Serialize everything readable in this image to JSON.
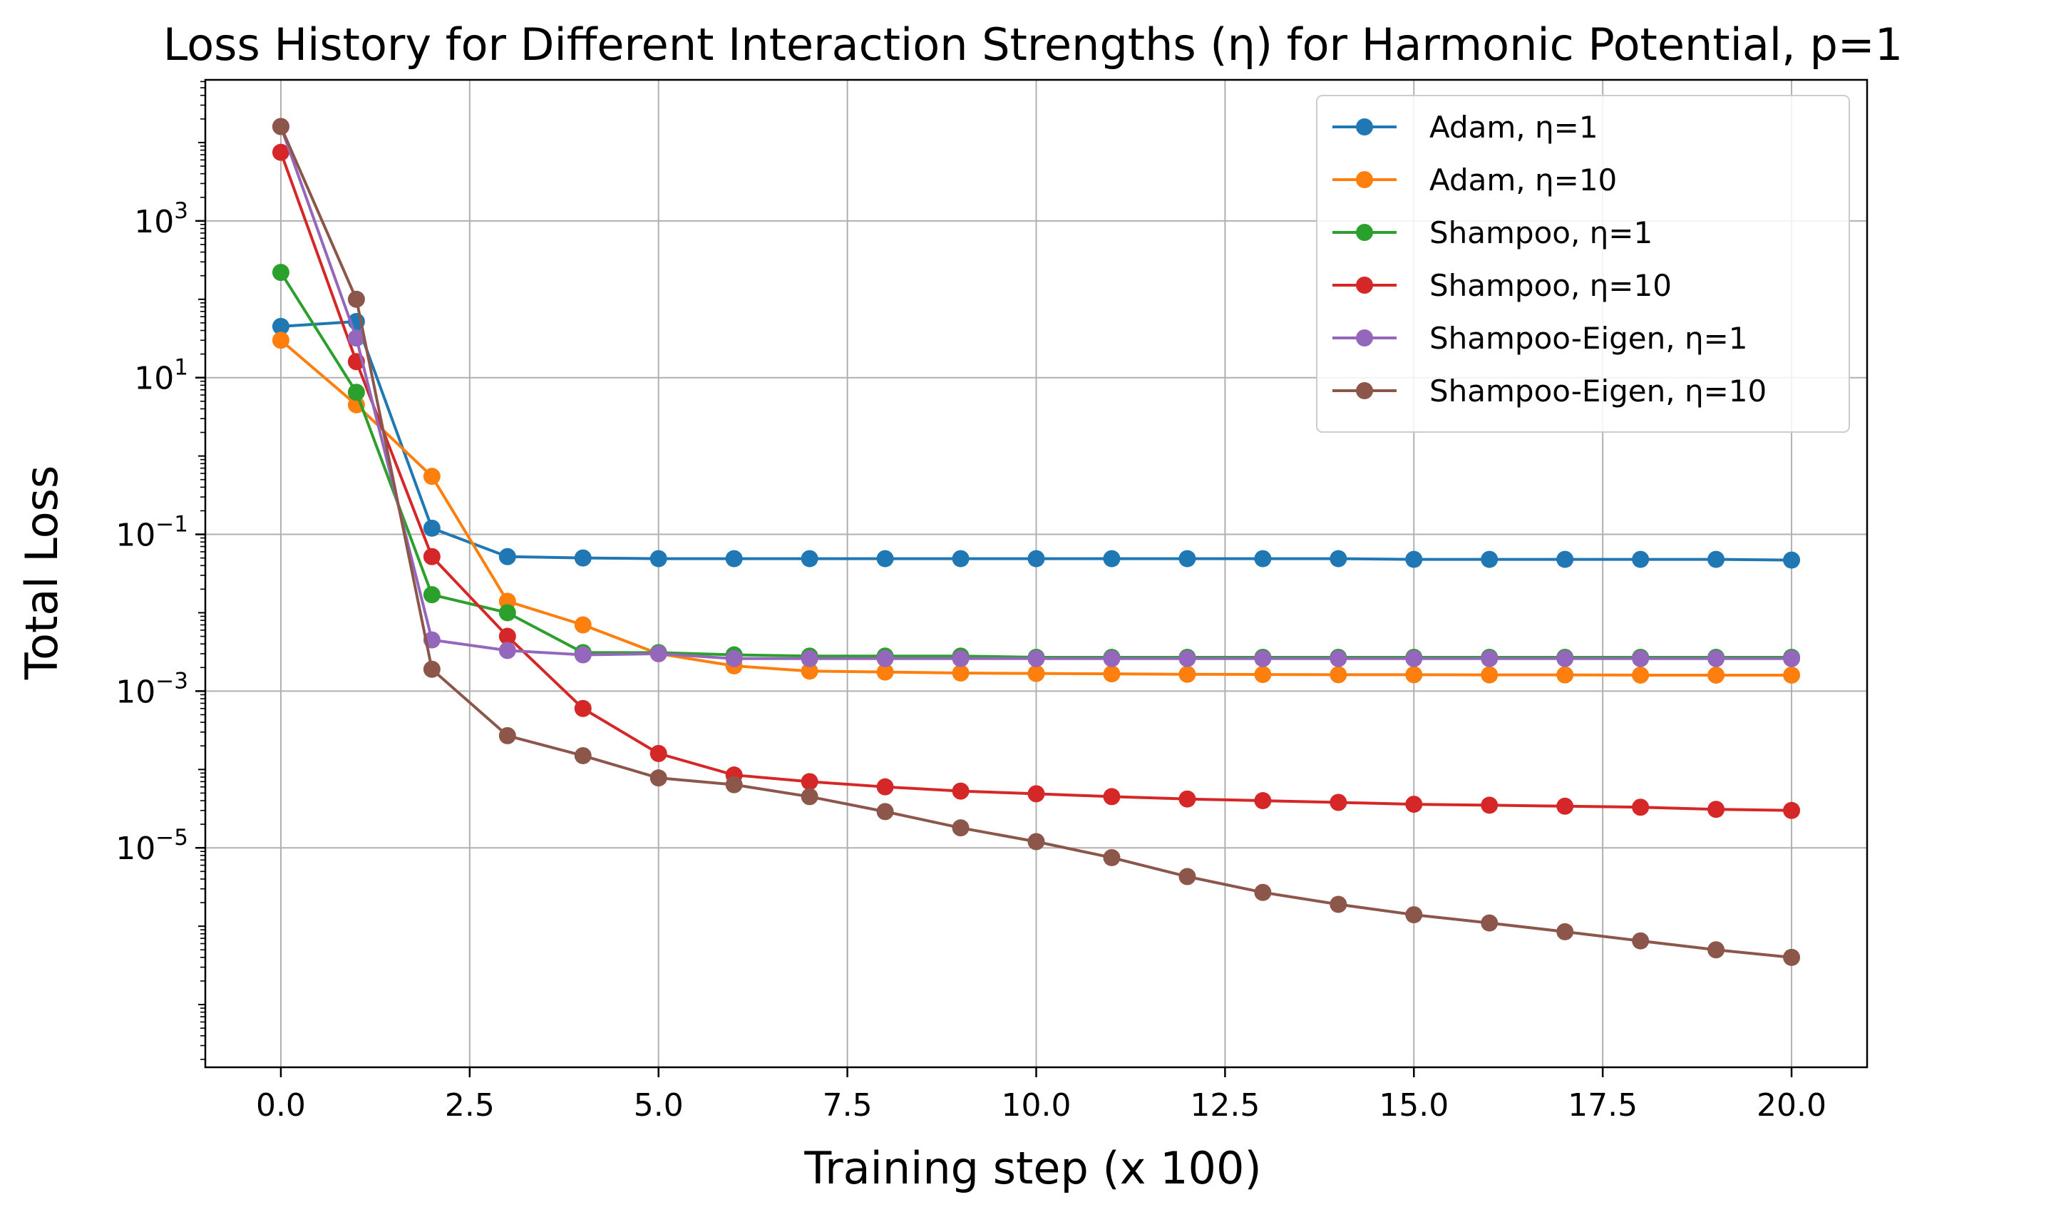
{
  "chart_data": {
    "type": "line",
    "title": "Loss History for Different Interaction Strengths (η) for Harmonic Potential, p=1",
    "xlabel": "Training step (x 100)",
    "ylabel": "Total Loss",
    "yscale": "log",
    "xlim": [
      -1,
      21
    ],
    "ylim_log10": [
      -7.8,
      4.8
    ],
    "grid": true,
    "legend_position": "top-right",
    "x_ticks": [
      0.0,
      2.5,
      5.0,
      7.5,
      10.0,
      12.5,
      15.0,
      17.5,
      20.0
    ],
    "x_tick_labels": [
      "0.0",
      "2.5",
      "5.0",
      "7.5",
      "10.0",
      "12.5",
      "15.0",
      "17.5",
      "20.0"
    ],
    "y_tick_exponents": [
      3,
      1,
      -1,
      -3,
      -5
    ],
    "y_tick_labels": [
      {
        "base": "10",
        "exp": "3"
      },
      {
        "base": "10",
        "exp": "1"
      },
      {
        "base": "10",
        "exp": "−1"
      },
      {
        "base": "10",
        "exp": "−3"
      },
      {
        "base": "10",
        "exp": "−5"
      }
    ],
    "x": [
      0,
      1,
      2,
      3,
      4,
      5,
      6,
      7,
      8,
      9,
      10,
      11,
      12,
      13,
      14,
      15,
      16,
      17,
      18,
      19,
      20
    ],
    "series": [
      {
        "name": "Adam, η=1",
        "color": "#1f77b4",
        "values": [
          45,
          52,
          0.12,
          0.052,
          0.05,
          0.049,
          0.049,
          0.049,
          0.049,
          0.049,
          0.049,
          0.049,
          0.049,
          0.049,
          0.049,
          0.048,
          0.048,
          0.048,
          0.048,
          0.048,
          0.047
        ]
      },
      {
        "name": "Adam, η=10",
        "color": "#ff7f0e",
        "values": [
          30,
          4.5,
          0.55,
          0.014,
          0.007,
          0.003,
          0.0021,
          0.0018,
          0.00175,
          0.0017,
          0.00168,
          0.00166,
          0.00164,
          0.00163,
          0.00162,
          0.00162,
          0.00161,
          0.00161,
          0.0016,
          0.0016,
          0.0016
        ]
      },
      {
        "name": "Shampoo, η=1",
        "color": "#2ca02c",
        "values": [
          220,
          6.5,
          0.017,
          0.01,
          0.0031,
          0.0031,
          0.0029,
          0.0028,
          0.0028,
          0.0028,
          0.0027,
          0.0027,
          0.0027,
          0.0027,
          0.0027,
          0.0027,
          0.0027,
          0.0027,
          0.0027,
          0.0027,
          0.0027
        ]
      },
      {
        "name": "Shampoo, η=10",
        "color": "#d62728",
        "values": [
          7500,
          16,
          0.052,
          0.005,
          0.0006,
          0.00016,
          8.5e-05,
          7e-05,
          6e-05,
          5.3e-05,
          4.9e-05,
          4.5e-05,
          4.2e-05,
          4e-05,
          3.8e-05,
          3.6e-05,
          3.5e-05,
          3.4e-05,
          3.3e-05,
          3.1e-05,
          3e-05
        ]
      },
      {
        "name": "Shampoo-Eigen, η=1",
        "color": "#9467bd",
        "values": [
          16000,
          32,
          0.0045,
          0.0033,
          0.0029,
          0.003,
          0.0026,
          0.0026,
          0.0026,
          0.0026,
          0.0026,
          0.0026,
          0.0026,
          0.0026,
          0.0026,
          0.0026,
          0.0026,
          0.0026,
          0.0026,
          0.0026,
          0.0026
        ]
      },
      {
        "name": "Shampoo-Eigen, η=10",
        "color": "#8c564b",
        "values": [
          16000,
          100,
          0.0019,
          0.00027,
          0.00015,
          7.8e-05,
          6.4e-05,
          4.5e-05,
          2.9e-05,
          1.8e-05,
          1.2e-05,
          7.5e-06,
          4.3e-06,
          2.7e-06,
          1.9e-06,
          1.4e-06,
          1.1e-06,
          8.5e-07,
          6.5e-07,
          5e-07,
          4e-07
        ]
      }
    ]
  }
}
